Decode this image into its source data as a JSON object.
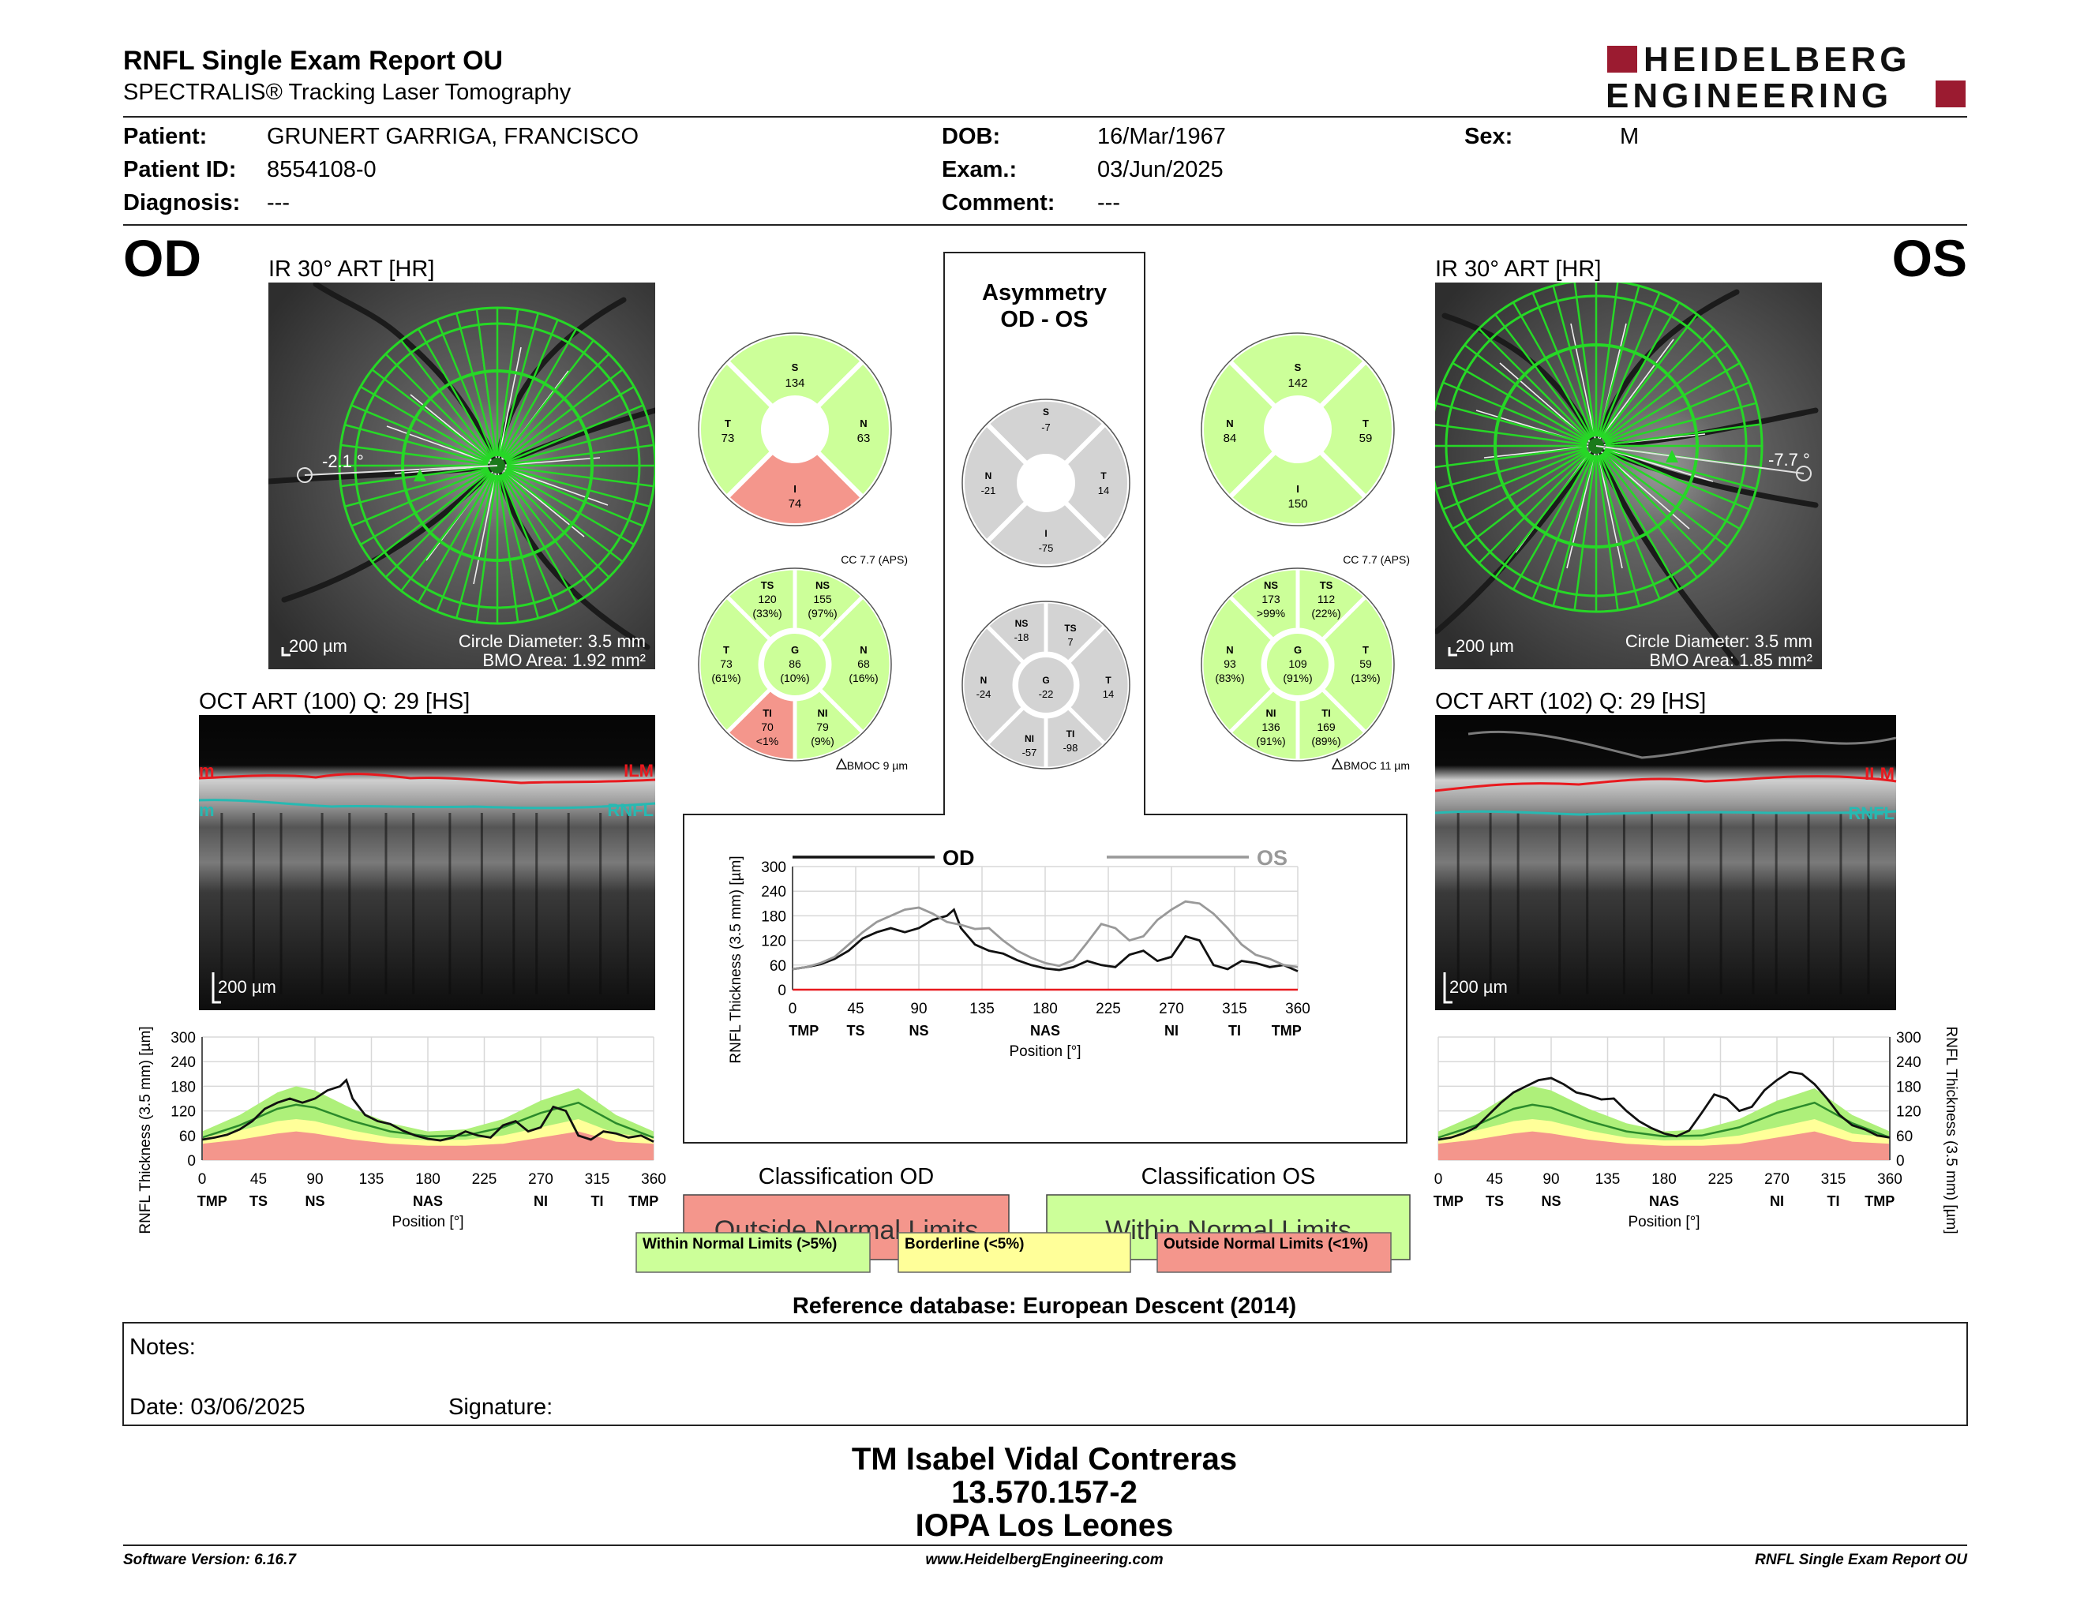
{
  "header": {
    "title": "RNFL Single Exam Report OU",
    "subtitle": "SPECTRALIS® Tracking Laser Tomography",
    "logo_line1": "HEIDELBERG",
    "logo_line2": "ENGINEERING",
    "brand_color": "#9b1b30"
  },
  "patient": {
    "patient_label": "Patient:",
    "patient_value": "GRUNERT GARRIGA, FRANCISCO",
    "id_label": "Patient ID:",
    "id_value": "8554108-0",
    "diagnosis_label": "Diagnosis:",
    "diagnosis_value": "---",
    "dob_label": "DOB:",
    "dob_value": "16/Mar/1967",
    "exam_label": "Exam.:",
    "exam_value": "03/Jun/2025",
    "comment_label": "Comment:",
    "comment_value": "---",
    "sex_label": "Sex:",
    "sex_value": "M"
  },
  "colors": {
    "normal": "#ccff99",
    "borderline": "#ffff99",
    "outside": "#f4968c",
    "asym": "#d3d3d3",
    "scan_green": "#2fd62f",
    "ilm": "#e8191e",
    "rnfl": "#27b9b2"
  },
  "od": {
    "eye": "OD",
    "ir_title": "IR 30° ART [HR]",
    "angle": "-2.1 °",
    "scale": "200 µm",
    "circle_diameter": "Circle Diameter: 3.5 mm",
    "bmo_area": "BMO Area: 1.92 mm²",
    "oct_title": "OCT ART (100) Q: 29 [HS]",
    "oct_scale": "200 µm",
    "ilm": "ILM",
    "rnfl": "RNFL",
    "ilm_partial": "m",
    "rnfl_partial": "m",
    "cc": "CC 7.7 (APS)",
    "bmoc": "BMOC 9 µm",
    "q_s": "134",
    "q_t": "73",
    "q_n": "63",
    "q_i": "74",
    "sec_ts": "120",
    "sec_ts_p": "(33%)",
    "sec_ns": "155",
    "sec_ns_p": "(97%)",
    "sec_t": "73",
    "sec_t_p": "(61%)",
    "sec_g": "86",
    "sec_g_p": "(10%)",
    "sec_n": "68",
    "sec_n_p": "(16%)",
    "sec_ti": "70",
    "sec_ti_p": "<1%",
    "sec_ni": "79",
    "sec_ni_p": "(9%)",
    "classification_title": "Classification OD",
    "classification_value": "Outside Normal Limits"
  },
  "os": {
    "eye": "OS",
    "ir_title": "IR 30° ART [HR]",
    "angle": "-7.7 °",
    "scale": "200 µm",
    "circle_diameter": "Circle Diameter: 3.5 mm",
    "bmo_area": "BMO Area: 1.85 mm²",
    "oct_title": "OCT ART (102) Q: 29 [HS]",
    "oct_scale": "200 µm",
    "ilm": "ILM",
    "rnfl": "RNFL",
    "cc": "CC 7.7 (APS)",
    "bmoc": "BMOC 11 µm",
    "q_s": "142",
    "q_n": "84",
    "q_t": "59",
    "q_i": "150",
    "sec_ns": "173",
    "sec_ns_p": ">99%",
    "sec_ts": "112",
    "sec_ts_p": "(22%)",
    "sec_n": "93",
    "sec_n_p": "(83%)",
    "sec_g": "109",
    "sec_g_p": "(91%)",
    "sec_t": "59",
    "sec_t_p": "(13%)",
    "sec_ni": "136",
    "sec_ni_p": "(91%)",
    "sec_ti": "169",
    "sec_ti_p": "(89%)",
    "classification_title": "Classification OS",
    "classification_value": "Within Normal Limits"
  },
  "asymmetry": {
    "title1": "Asymmetry",
    "title2": "OD - OS",
    "q_s": "-7",
    "q_n": "-21",
    "q_t": "14",
    "q_i": "-75",
    "sec_ns": "-18",
    "sec_ts": "7",
    "sec_n": "-24",
    "sec_g": "-22",
    "sec_t": "14",
    "sec_ni": "-57",
    "sec_ti": "-98"
  },
  "sector_labels": {
    "s": "S",
    "t": "T",
    "n": "N",
    "i": "I",
    "g": "G",
    "ts": "TS",
    "ns": "NS",
    "ti": "TI",
    "ni": "NI"
  },
  "chart_common": {
    "y_ticks": [
      "300",
      "240",
      "180",
      "120",
      "60",
      "0"
    ],
    "x_ticks_od": [
      "0",
      "45",
      "90",
      "135",
      "180",
      "225",
      "270",
      "315",
      "360"
    ],
    "x_ticks_os": [
      "0",
      "45",
      "90",
      "135",
      "180",
      "225",
      "270",
      "315",
      "360"
    ],
    "x_ticks_c": [
      "0",
      "45",
      "90",
      "135",
      "180",
      "225",
      "270",
      "315",
      "360"
    ],
    "sector_od": [
      "TMP",
      "TS",
      "NS",
      "NAS",
      "NI",
      "TI",
      "TMP"
    ],
    "sector_os": [
      "TMP",
      "TS",
      "NS",
      "NAS",
      "NI",
      "TI",
      "TMP"
    ],
    "sector_c": [
      "TMP",
      "TS",
      "NS",
      "NAS",
      "NI",
      "TI",
      "TMP"
    ],
    "y_label": "RNFL Thickness (3.5 mm) [µm]",
    "x_label": "Position [°]",
    "legend_od": "OD",
    "legend_os": "OS"
  },
  "chart_data": [
    {
      "type": "line",
      "title": "",
      "xlabel": "Position [°]",
      "ylabel": "RNFL Thickness (3.5 mm) [µm]",
      "xlim": [
        0,
        360
      ],
      "ylim": [
        0,
        300
      ],
      "series": [
        {
          "name": "OD",
          "x": [
            0,
            10,
            20,
            30,
            40,
            50,
            60,
            70,
            80,
            90,
            100,
            110,
            115,
            120,
            130,
            140,
            150,
            160,
            170,
            180,
            190,
            200,
            210,
            220,
            230,
            240,
            250,
            260,
            270,
            280,
            290,
            300,
            310,
            320,
            330,
            340,
            350,
            360
          ],
          "values": [
            50,
            55,
            62,
            75,
            95,
            125,
            140,
            150,
            140,
            150,
            170,
            180,
            195,
            150,
            110,
            95,
            88,
            72,
            60,
            52,
            48,
            55,
            70,
            60,
            55,
            85,
            95,
            70,
            80,
            130,
            120,
            60,
            50,
            70,
            65,
            55,
            60,
            45
          ]
        }
      ]
    },
    {
      "type": "line",
      "title": "",
      "xlabel": "Position [°]",
      "ylabel": "RNFL Thickness (3.5 mm) [µm]",
      "xlim": [
        0,
        360
      ],
      "ylim": [
        0,
        300
      ],
      "series": [
        {
          "name": "OS",
          "x": [
            0,
            10,
            20,
            30,
            40,
            50,
            60,
            70,
            80,
            90,
            100,
            110,
            120,
            130,
            140,
            150,
            160,
            170,
            180,
            190,
            200,
            210,
            220,
            230,
            240,
            250,
            260,
            270,
            280,
            290,
            300,
            310,
            320,
            330,
            340,
            350,
            360
          ],
          "values": [
            50,
            55,
            65,
            80,
            110,
            140,
            165,
            180,
            195,
            200,
            185,
            165,
            158,
            148,
            150,
            120,
            95,
            78,
            65,
            58,
            72,
            115,
            160,
            150,
            120,
            130,
            170,
            195,
            215,
            210,
            185,
            150,
            110,
            85,
            75,
            60,
            55
          ]
        }
      ]
    },
    {
      "type": "line",
      "title": "",
      "xlabel": "Position [°]",
      "ylabel": "RNFL Thickness (3.5 mm) [µm]",
      "xlim": [
        0,
        360
      ],
      "ylim": [
        0,
        300
      ],
      "series": [
        {
          "name": "OD",
          "x": [
            0,
            10,
            20,
            30,
            40,
            50,
            60,
            70,
            80,
            90,
            100,
            110,
            115,
            120,
            130,
            140,
            150,
            160,
            170,
            180,
            190,
            200,
            210,
            220,
            230,
            240,
            250,
            260,
            270,
            280,
            290,
            300,
            310,
            320,
            330,
            340,
            350,
            360
          ],
          "values": [
            50,
            55,
            62,
            75,
            95,
            125,
            140,
            150,
            140,
            150,
            170,
            180,
            195,
            150,
            110,
            95,
            88,
            72,
            60,
            52,
            48,
            55,
            70,
            60,
            55,
            85,
            95,
            70,
            80,
            130,
            120,
            60,
            50,
            70,
            65,
            55,
            60,
            45
          ]
        },
        {
          "name": "OS",
          "x": [
            0,
            10,
            20,
            30,
            40,
            50,
            60,
            70,
            80,
            90,
            100,
            110,
            120,
            130,
            140,
            150,
            160,
            170,
            180,
            190,
            200,
            210,
            220,
            230,
            240,
            250,
            260,
            270,
            280,
            290,
            300,
            310,
            320,
            330,
            340,
            350,
            360
          ],
          "values": [
            50,
            55,
            65,
            80,
            110,
            140,
            165,
            180,
            195,
            200,
            185,
            165,
            158,
            148,
            150,
            120,
            95,
            78,
            65,
            58,
            72,
            115,
            160,
            150,
            120,
            130,
            170,
            195,
            215,
            210,
            185,
            150,
            110,
            85,
            75,
            60,
            55
          ]
        }
      ]
    }
  ],
  "legend": {
    "normal": "Within Normal Limits (>5%)",
    "borderline": "Borderline (<5%)",
    "outside": "Outside Normal Limits (<1%)"
  },
  "reference": "Reference database: European Descent (2014)",
  "notes": {
    "label": "Notes:",
    "date": "Date: 03/06/2025",
    "signature": "Signature:"
  },
  "signer": {
    "line1": "TM Isabel Vidal Contreras",
    "line2": "13.570.157-2",
    "line3": "IOPA Los Leones"
  },
  "footer": {
    "software": "Software Version: 6.16.7",
    "url": "www.HeidelbergEngineering.com",
    "report": "RNFL Single Exam Report OU"
  }
}
